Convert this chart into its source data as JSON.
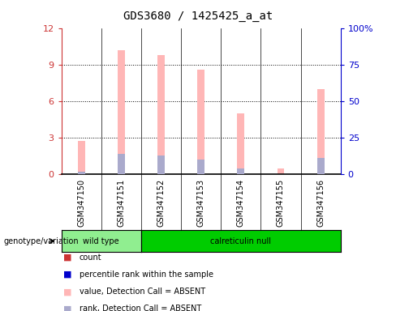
{
  "title": "GDS3680 / 1425425_a_at",
  "samples": [
    "GSM347150",
    "GSM347151",
    "GSM347152",
    "GSM347153",
    "GSM347154",
    "GSM347155",
    "GSM347156"
  ],
  "pink_bar_heights": [
    2.7,
    10.2,
    9.8,
    8.6,
    5.0,
    0.5,
    7.0
  ],
  "blue_bar_heights_pct": [
    1.5,
    14.0,
    13.0,
    10.0,
    4.0,
    0.0,
    11.0
  ],
  "ylim_left": [
    0,
    12
  ],
  "ylim_right": [
    0,
    100
  ],
  "yticks_left": [
    0,
    3,
    6,
    9,
    12
  ],
  "yticks_right": [
    0,
    25,
    50,
    75,
    100
  ],
  "ytick_labels_right": [
    "0",
    "25",
    "50",
    "75",
    "100%"
  ],
  "wild_type_color": "#90EE90",
  "calreticulin_null_color": "#00CC00",
  "bar_bg_color": "#C8C8C8",
  "left_axis_color": "#CC3333",
  "right_axis_color": "#0000CC",
  "pink_color": "#FFB6B6",
  "blue_color": "#AAAACC",
  "legend_items": [
    {
      "color": "#CC3333",
      "label": "count"
    },
    {
      "color": "#0000CC",
      "label": "percentile rank within the sample"
    },
    {
      "color": "#FFB6B6",
      "label": "value, Detection Call = ABSENT"
    },
    {
      "color": "#AAAACC",
      "label": "rank, Detection Call = ABSENT"
    }
  ],
  "genotype_label": "genotype/variation",
  "wild_type_label": "wild type",
  "calreticulin_null_label": "calreticulin null",
  "wild_type_count": 2,
  "total_samples": 7
}
